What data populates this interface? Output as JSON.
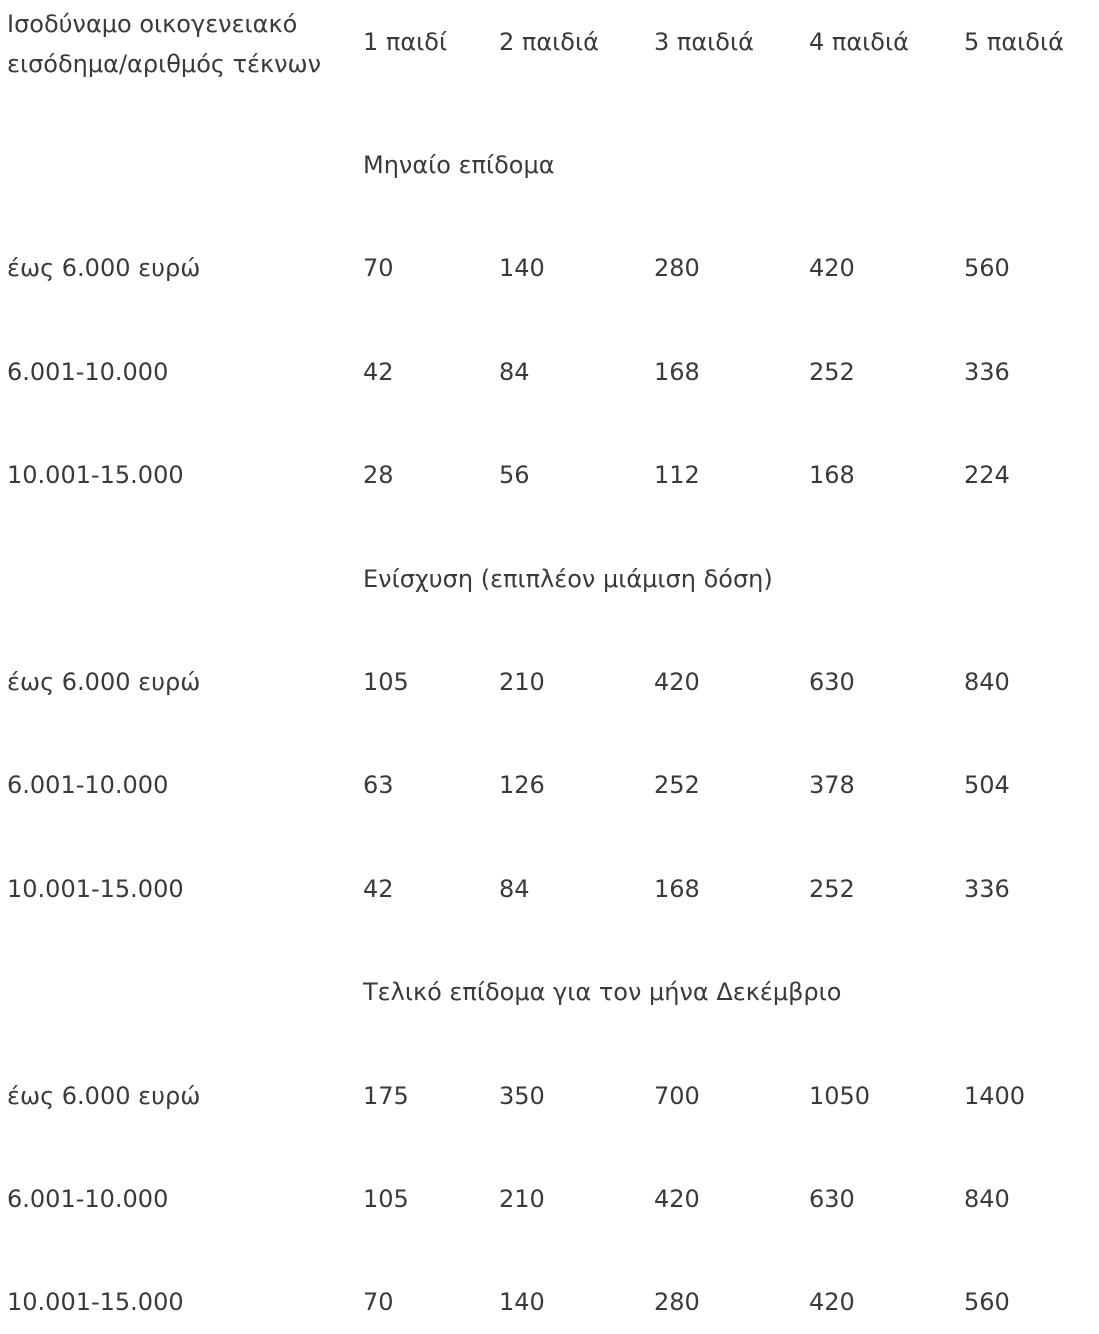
{
  "table": {
    "header": {
      "first": [
        "Ισοδύναμο οικογενειακό",
        "εισόδημα/αριθμός τέκνων"
      ],
      "columns": [
        "1 παιδί",
        "2 παιδιά",
        "3 παιδιά",
        "4 παιδιά",
        "5 παιδιά"
      ]
    },
    "sections": [
      {
        "title": "Μηναίο επίδομα",
        "rows": [
          {
            "label": "έως 6.000 ευρώ",
            "values": [
              "70",
              "140",
              "280",
              "420",
              "560"
            ]
          },
          {
            "label": "6.001-10.000",
            "values": [
              "42",
              "84",
              "168",
              "252",
              "336"
            ]
          },
          {
            "label": "10.001-15.000",
            "values": [
              "28",
              "56",
              "112",
              "168",
              "224"
            ]
          }
        ]
      },
      {
        "title": "Ενίσχυση (επιπλέον μιάμιση δόση)",
        "rows": [
          {
            "label": "έως 6.000 ευρώ",
            "values": [
              "105",
              "210",
              "420",
              "630",
              "840"
            ]
          },
          {
            "label": "6.001-10.000",
            "values": [
              "63",
              "126",
              "252",
              "378",
              "504"
            ]
          },
          {
            "label": "10.001-15.000",
            "values": [
              "42",
              "84",
              "168",
              "252",
              "336"
            ]
          }
        ]
      },
      {
        "title": "Τελικό επίδομα για τον μήνα Δεκέμβριο",
        "rows": [
          {
            "label": "έως 6.000 ευρώ",
            "values": [
              "175",
              "350",
              "700",
              "1050",
              "1400"
            ]
          },
          {
            "label": "6.001-10.000",
            "values": [
              "105",
              "210",
              "420",
              "630",
              "840"
            ]
          },
          {
            "label": "10.001-15.000",
            "values": [
              "70",
              "140",
              "280",
              "420",
              "560"
            ]
          }
        ]
      }
    ]
  }
}
